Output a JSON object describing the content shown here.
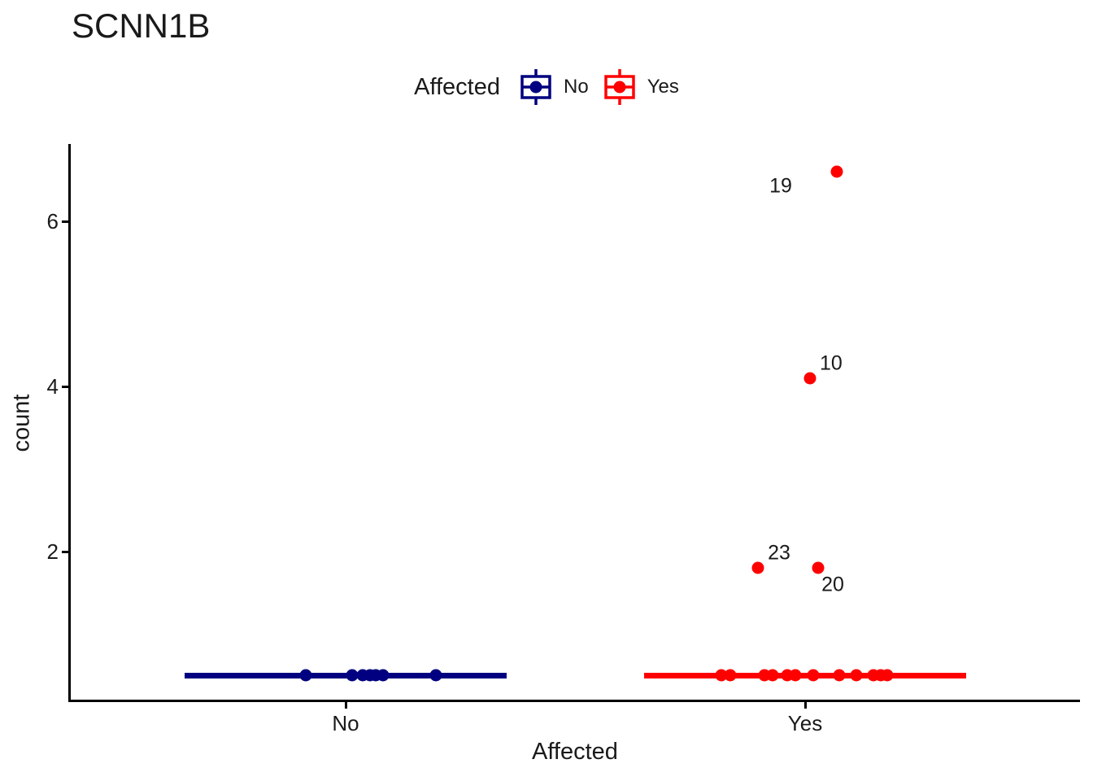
{
  "title": "SCNN1B",
  "legend": {
    "title": "Affected",
    "items": [
      {
        "label": "No",
        "color": "#000080"
      },
      {
        "label": "Yes",
        "color": "#FF0000"
      }
    ]
  },
  "x_axis": {
    "title": "Affected"
  },
  "y_axis": {
    "title": "count"
  },
  "chart_data": {
    "type": "boxplot",
    "title": "SCNN1B",
    "xlabel": "Affected",
    "ylabel": "count",
    "categories": [
      "No",
      "Yes"
    ],
    "yticks": [
      2,
      4,
      6
    ],
    "ylim": [
      0.2,
      7.0
    ],
    "grid": false,
    "legend_position": "top",
    "groups": [
      {
        "name": "No",
        "color": "#000080",
        "median": 0.5,
        "points": [
          {
            "x": -0.247,
            "y": 0.5
          },
          {
            "x": 0.04,
            "y": 0.5
          },
          {
            "x": 0.106,
            "y": 0.5
          },
          {
            "x": 0.152,
            "y": 0.5
          },
          {
            "x": 0.187,
            "y": 0.5
          },
          {
            "x": 0.232,
            "y": 0.5
          },
          {
            "x": 0.561,
            "y": 0.5
          }
        ],
        "outliers": []
      },
      {
        "name": "Yes",
        "color": "#FF0000",
        "median": 0.5,
        "points": [
          {
            "x": -0.52,
            "y": 0.5
          },
          {
            "x": -0.465,
            "y": 0.5
          },
          {
            "x": -0.253,
            "y": 0.5
          },
          {
            "x": -0.202,
            "y": 0.5
          },
          {
            "x": -0.111,
            "y": 0.5
          },
          {
            "x": -0.061,
            "y": 0.5
          },
          {
            "x": 0.051,
            "y": 0.5
          },
          {
            "x": 0.212,
            "y": 0.5
          },
          {
            "x": 0.318,
            "y": 0.5
          },
          {
            "x": 0.424,
            "y": 0.5
          },
          {
            "x": 0.47,
            "y": 0.5
          },
          {
            "x": 0.51,
            "y": 0.5
          }
        ],
        "outliers": [
          {
            "label": "19",
            "x": 0.197,
            "y": 6.6,
            "label_pos": "left-below"
          },
          {
            "label": "10",
            "x": 0.03,
            "y": 4.1,
            "label_pos": "right-above"
          },
          {
            "label": "23",
            "x": -0.293,
            "y": 1.8,
            "label_pos": "right-above"
          },
          {
            "label": "20",
            "x": 0.081,
            "y": 1.8,
            "label_pos": "right-below"
          }
        ]
      }
    ]
  }
}
